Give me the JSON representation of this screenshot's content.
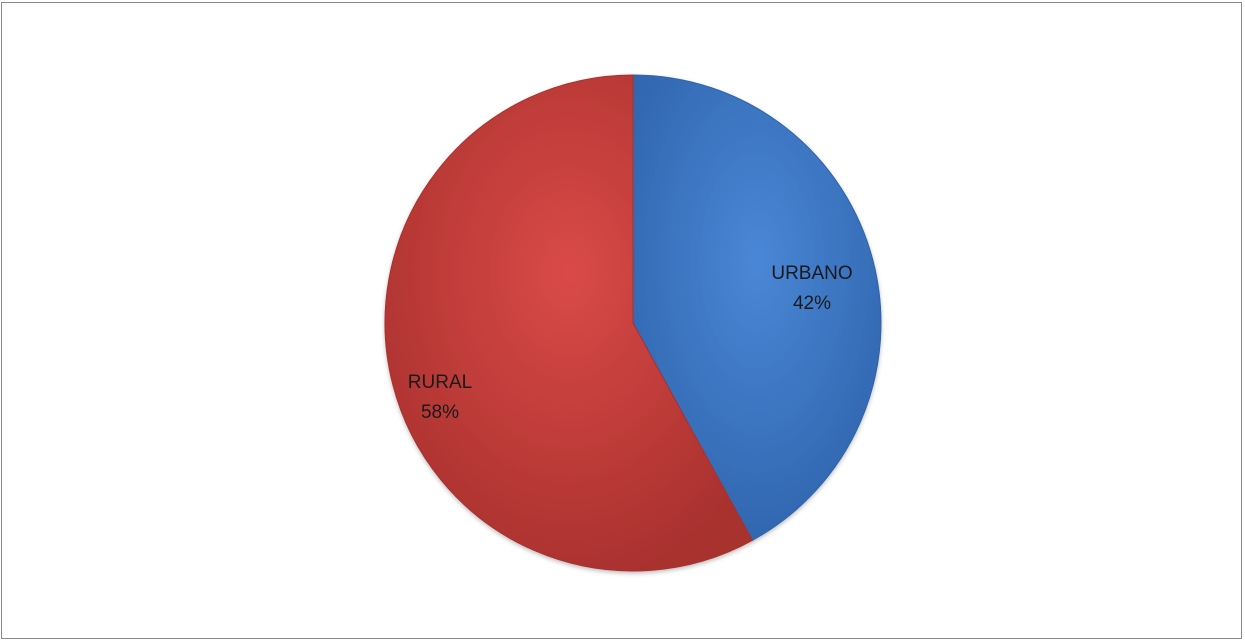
{
  "chart_data": {
    "type": "pie",
    "title": "",
    "slices": [
      {
        "label": "URBANO",
        "value": 42,
        "percent_label": "42%",
        "color": "#4a87d6",
        "color_dark": "#2f64ad"
      },
      {
        "label": "RURAL",
        "value": 58,
        "percent_label": "58%",
        "color": "#d94a47",
        "color_dark": "#a8302e"
      }
    ],
    "start": "12 o'clock",
    "direction": "clockwise",
    "legend": "none",
    "labels": "inside"
  }
}
